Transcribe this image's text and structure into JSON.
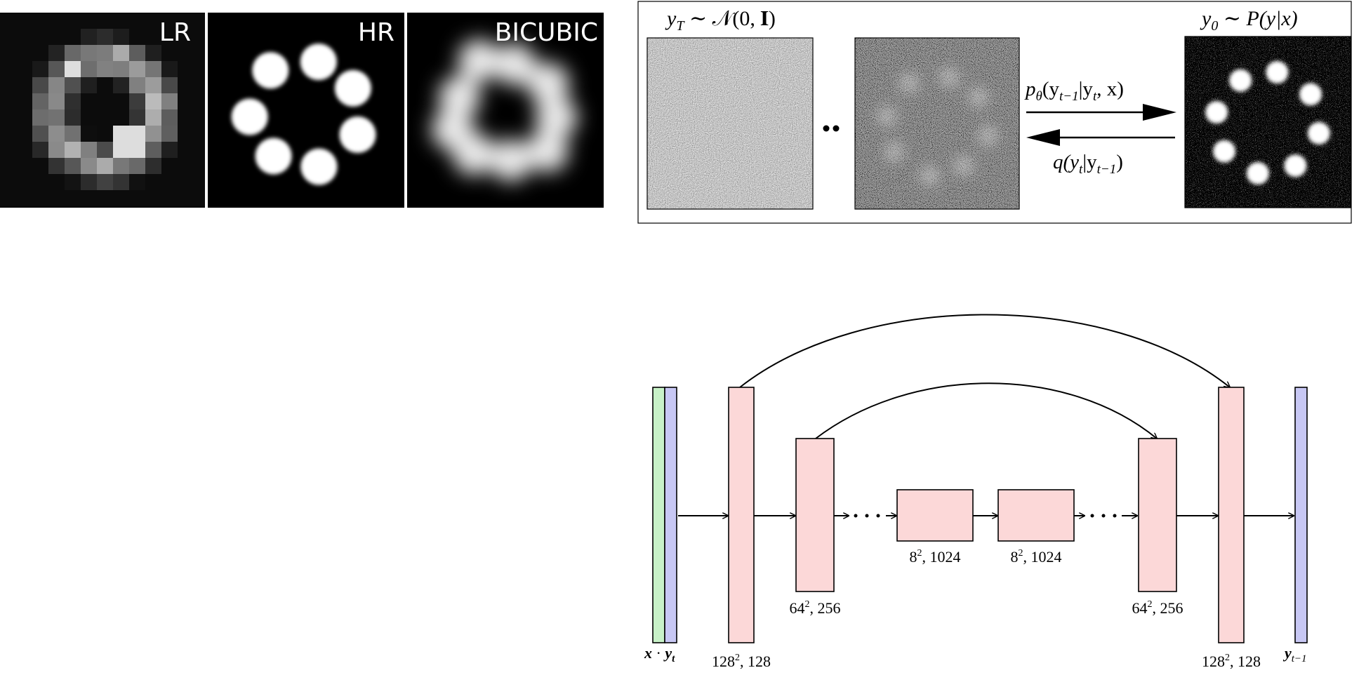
{
  "panels": {
    "lr_label": "LR",
    "hr_label": "HR",
    "bicubic_label": "BICUBIC"
  },
  "diffusion": {
    "noise_prior": {
      "y": "y",
      "sub": "T",
      "rest": " ∼ 𝒩(0, 𝐈)"
    },
    "target": {
      "y": "y",
      "sub": "0",
      "rest": " ∼ P(y|x)"
    },
    "reverse": {
      "p": "p",
      "sub": "θ",
      "rest": "(y",
      "sub2": "t−1",
      "rest2": "|y",
      "sub3": "t",
      "rest3": ", x)"
    },
    "forward": {
      "q": "q(y",
      "sub": "t",
      "rest": "|y",
      "sub2": "t−1",
      "rest2": ")"
    }
  },
  "unet": {
    "input": {
      "x": "x",
      "dot": " · ",
      "y": "y",
      "sub": "t"
    },
    "output": {
      "y": "y",
      "sub": "t−1"
    },
    "dims": {
      "l128": {
        "base": "128",
        "exp": "2",
        "rest": ", 128"
      },
      "l64": {
        "base": "64",
        "exp": "2",
        "rest": ", 256"
      },
      "m8a": {
        "base": "8",
        "exp": "2",
        "rest": ", 1024"
      },
      "m8b": {
        "base": "8",
        "exp": "2",
        "rest": ", 1024"
      },
      "r64": {
        "base": "64",
        "exp": "2",
        "rest": ", 256"
      },
      "r128": {
        "base": "128",
        "exp": "2",
        "rest": ", 128"
      }
    },
    "colors": {
      "block": "#fcd8d8",
      "input_x": "#c8f2c8",
      "input_y": "#c8c8f4"
    }
  }
}
